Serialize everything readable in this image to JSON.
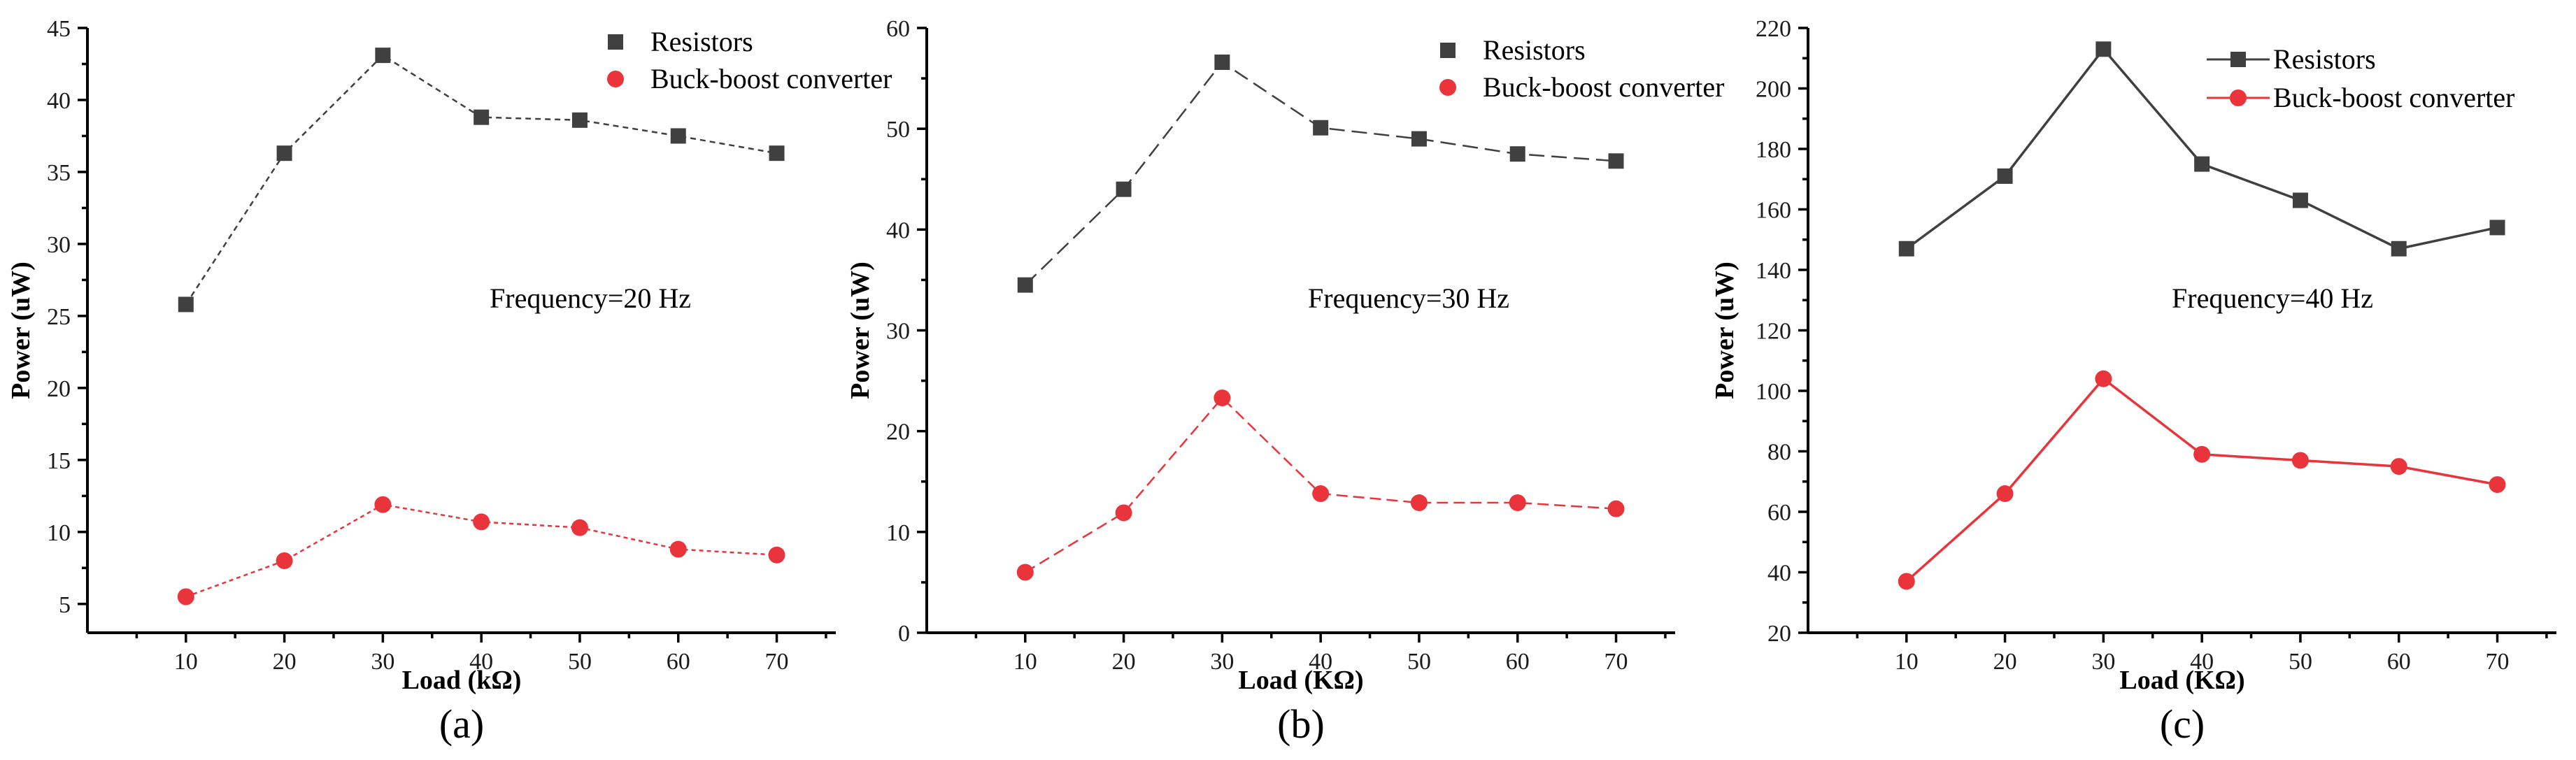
{
  "colors": {
    "resistors": "#404040",
    "converter": "#e8343a",
    "axis": "#000000"
  },
  "chart_data": [
    {
      "type": "line",
      "panel_label": "(a)",
      "xlabel": "Load (kΩ)",
      "ylabel": "Power (uW)",
      "annotation": "Frequency=20 Hz",
      "x": [
        10,
        20,
        30,
        40,
        50,
        60,
        70
      ],
      "xticks": [
        "10",
        "20",
        "30",
        "40",
        "50",
        "60",
        "70"
      ],
      "xlim": [
        0,
        76
      ],
      "ylim": [
        3,
        45
      ],
      "yticks": [
        "5",
        "10",
        "15",
        "20",
        "25",
        "30",
        "35",
        "40",
        "45"
      ],
      "legend_position": "top-right",
      "series": [
        {
          "name": "Resistors",
          "values": [
            25.8,
            36.3,
            43.1,
            38.8,
            38.6,
            37.5,
            36.3
          ]
        },
        {
          "name": "Buck-boost converter",
          "values": [
            5.5,
            8.0,
            11.9,
            10.7,
            10.3,
            8.8,
            8.4
          ]
        }
      ]
    },
    {
      "type": "line",
      "panel_label": "(b)",
      "xlabel": "Load (KΩ)",
      "ylabel": "Power (uW)",
      "annotation": "Frequency=30 Hz",
      "x": [
        10,
        20,
        30,
        40,
        50,
        60,
        70
      ],
      "xticks": [
        "10",
        "20",
        "30",
        "40",
        "50",
        "60",
        "70"
      ],
      "xlim": [
        0,
        76
      ],
      "ylim": [
        0,
        60
      ],
      "yticks": [
        "0",
        "10",
        "20",
        "30",
        "40",
        "50",
        "60"
      ],
      "legend_position": "top-right",
      "series": [
        {
          "name": "Resistors",
          "values": [
            34.5,
            44.0,
            56.6,
            50.1,
            49.0,
            47.5,
            46.8
          ]
        },
        {
          "name": "Buck-boost converter",
          "values": [
            6.0,
            11.9,
            23.3,
            13.8,
            12.9,
            12.9,
            12.3
          ]
        }
      ]
    },
    {
      "type": "line",
      "panel_label": "(c)",
      "xlabel": "Load (KΩ)",
      "ylabel": "Power (uW)",
      "annotation": "Frequency=40 Hz",
      "x": [
        10,
        20,
        30,
        40,
        50,
        60,
        70
      ],
      "xticks": [
        "10",
        "20",
        "30",
        "40",
        "50",
        "60",
        "70"
      ],
      "xlim": [
        0,
        76
      ],
      "ylim": [
        20,
        220
      ],
      "yticks": [
        "20",
        "40",
        "60",
        "80",
        "100",
        "120",
        "140",
        "160",
        "180",
        "200",
        "220"
      ],
      "legend_position": "top-right",
      "series": [
        {
          "name": "Resistors",
          "values": [
            147,
            171,
            213,
            175,
            163,
            147,
            154
          ]
        },
        {
          "name": "Buck-boost converter",
          "values": [
            37,
            66,
            104,
            79,
            77,
            75,
            69
          ]
        }
      ]
    }
  ]
}
